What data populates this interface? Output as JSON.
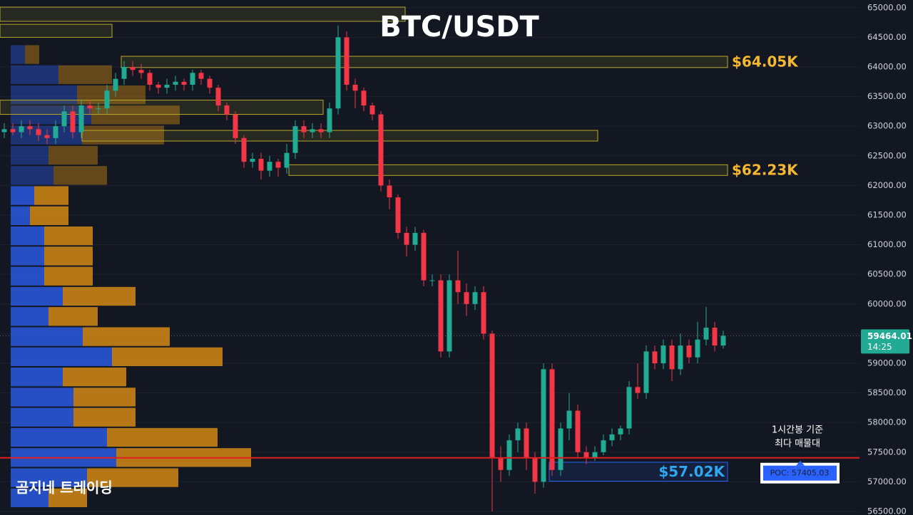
{
  "chart_data": {
    "type": "candlestick",
    "title": "BTC/USDT",
    "watermark": "곰지네 트레이딩",
    "open": [
      62900,
      62950,
      62900,
      63000,
      62950,
      62850,
      62800,
      63000,
      63250,
      62900,
      63350,
      63300,
      63300,
      63600,
      63800,
      64000,
      63950,
      63900,
      63700,
      63650,
      63700,
      63750,
      63700,
      63900,
      63800,
      63650,
      63350,
      63200,
      62800,
      62400,
      62450,
      62250,
      62400,
      62300,
      62550,
      63000,
      62900,
      62950,
      62900,
      63300,
      64500,
      63700,
      63600,
      63350,
      63200,
      62000,
      61800,
      61200,
      61000,
      61200,
      60400,
      60400,
      59200,
      60400,
      60200,
      60000,
      60200,
      59500,
      57400,
      57200,
      57700,
      57900,
      57400,
      57000,
      58900,
      57200,
      57900,
      58200,
      57500,
      57400,
      57500,
      57700,
      57800,
      57900,
      58600,
      58500,
      59200,
      59000,
      59300,
      58900,
      59300,
      59100,
      59400,
      59600,
      59300
    ],
    "high": [
      63050,
      63050,
      63100,
      63100,
      63050,
      62950,
      63100,
      63350,
      63350,
      63450,
      63450,
      63400,
      63700,
      63900,
      64100,
      64100,
      64050,
      63950,
      63750,
      63800,
      63850,
      63800,
      63950,
      63950,
      63850,
      63700,
      63400,
      63250,
      62850,
      62550,
      62550,
      62500,
      62450,
      62700,
      63100,
      63100,
      63050,
      63050,
      63400,
      64700,
      64600,
      63800,
      63650,
      63400,
      63250,
      62100,
      61850,
      61300,
      61300,
      61250,
      60500,
      60500,
      60500,
      60900,
      60350,
      60300,
      60300,
      59550,
      57600,
      57800,
      58000,
      58000,
      57500,
      59000,
      59000,
      58000,
      58500,
      58300,
      57600,
      57600,
      57800,
      57900,
      57950,
      58700,
      59000,
      59300,
      59300,
      59400,
      59400,
      59500,
      59400,
      59700,
      59950,
      59700,
      59550
    ],
    "low": [
      62800,
      62850,
      62800,
      62850,
      62750,
      62700,
      62700,
      62900,
      62800,
      62800,
      63200,
      63200,
      63200,
      63500,
      63700,
      63850,
      63800,
      63600,
      63550,
      63550,
      63600,
      63600,
      63600,
      63700,
      63550,
      63250,
      63100,
      62700,
      62300,
      62300,
      62100,
      62150,
      62150,
      62200,
      62450,
      62800,
      62800,
      62800,
      62800,
      63200,
      63600,
      63300,
      63250,
      63100,
      61900,
      61600,
      61100,
      60800,
      60900,
      60300,
      60300,
      59100,
      59100,
      60000,
      59800,
      59900,
      59400,
      56500,
      57000,
      57100,
      57500,
      57200,
      56800,
      56900,
      57100,
      57100,
      57700,
      57400,
      57300,
      57350,
      57450,
      57600,
      57700,
      57800,
      58400,
      58400,
      58900,
      58900,
      58700,
      58800,
      59000,
      59000,
      59300,
      59200,
      59250
    ],
    "close": [
      62950,
      62900,
      63000,
      62950,
      62850,
      62800,
      63000,
      63250,
      62900,
      63350,
      63300,
      63300,
      63600,
      63800,
      64000,
      63950,
      63900,
      63700,
      63650,
      63700,
      63750,
      63700,
      63900,
      63800,
      63650,
      63350,
      63200,
      62800,
      62400,
      62450,
      62250,
      62400,
      62300,
      62550,
      63000,
      62900,
      62950,
      62900,
      63300,
      64500,
      63700,
      63600,
      63350,
      63200,
      62000,
      61800,
      61200,
      61000,
      61200,
      60400,
      60400,
      59200,
      60400,
      60200,
      60000,
      60200,
      59500,
      57400,
      57200,
      57700,
      57900,
      57400,
      57000,
      58900,
      57200,
      57900,
      58200,
      57500,
      57400,
      57500,
      57700,
      57800,
      57900,
      58600,
      58500,
      59200,
      59000,
      59300,
      58900,
      59300,
      59100,
      59400,
      59600,
      59300,
      59464.01
    ],
    "up_color": "#22ab94",
    "down_color": "#f23645",
    "volume_profile": {
      "bins": [
        64380,
        64040,
        63700,
        63360,
        63020,
        62680,
        62340,
        62000,
        61660,
        61320,
        60980,
        60640,
        60300,
        59960,
        59620,
        59280,
        58940,
        58600,
        58260,
        57920,
        57580,
        57240,
        56900,
        56560
      ],
      "buy": [
        20,
        67,
        93,
        113,
        100,
        53,
        60,
        33,
        27,
        47,
        47,
        47,
        73,
        53,
        101,
        142,
        73,
        88,
        88,
        135,
        148,
        107,
        53
      ],
      "sell": [
        20,
        75,
        96,
        124,
        115,
        69,
        75,
        48,
        54,
        68,
        68,
        68,
        102,
        69,
        122,
        155,
        89,
        87,
        87,
        155,
        189,
        128,
        54
      ],
      "buy_color": "#2a55d6",
      "sell_color": "#c98216"
    },
    "zones": [
      {
        "top": 65010,
        "bottom": 64770,
        "color": "#b8a82a"
      },
      {
        "top": 64720,
        "bottom": 64500,
        "color": "#b8a82a"
      },
      {
        "top": 64180,
        "bottom": 63990,
        "color": "#b8a82a",
        "label": "$64.05K",
        "label_color": "#f5b82e"
      },
      {
        "top": 63440,
        "bottom": 63200,
        "color": "#b8a82a"
      },
      {
        "top": 62930,
        "bottom": 62750,
        "color": "#b8a82a"
      },
      {
        "top": 62350,
        "bottom": 62170,
        "color": "#b8a82a",
        "label": "$62.23K",
        "label_color": "#f5b82e"
      },
      {
        "top": 57330,
        "bottom": 57010,
        "color": "#2962ff",
        "label": "$57.02K",
        "label_color": "#2ea8f0"
      }
    ],
    "poc": {
      "value": 57405.03,
      "label": "POC: 57405.03",
      "color": "#e02020"
    },
    "annotation": [
      "1시간봉 기준",
      "최다 매물대"
    ],
    "last_price": {
      "value": 59464.01,
      "label": "59464.01"
    },
    "last_price_time": "14:25",
    "ylim": [
      56440,
      65130
    ],
    "yticks": [
      {
        "value": 56500,
        "label": "56500.00"
      },
      {
        "value": 57000,
        "label": "57000.00"
      },
      {
        "value": 57500,
        "label": "57500.00"
      },
      {
        "value": 58000,
        "label": "58000.00"
      },
      {
        "value": 58500,
        "label": "58500.00"
      },
      {
        "value": 59000,
        "label": "59000.00"
      },
      {
        "value": 59500,
        "label": "59500.00"
      },
      {
        "value": 60000,
        "label": "60000.00"
      },
      {
        "value": 60500,
        "label": "60500.00"
      },
      {
        "value": 61000,
        "label": "61000.00"
      },
      {
        "value": 61500,
        "label": "61500.00"
      },
      {
        "value": 62000,
        "label": "62000.00"
      },
      {
        "value": 62500,
        "label": "62500.00"
      },
      {
        "value": 63000,
        "label": "63000.00"
      },
      {
        "value": 63500,
        "label": "63500.00"
      },
      {
        "value": 64000,
        "label": "64000.00"
      },
      {
        "value": 64500,
        "label": "64500.00"
      },
      {
        "value": 65000,
        "label": "65000.00"
      }
    ],
    "grid": true
  }
}
